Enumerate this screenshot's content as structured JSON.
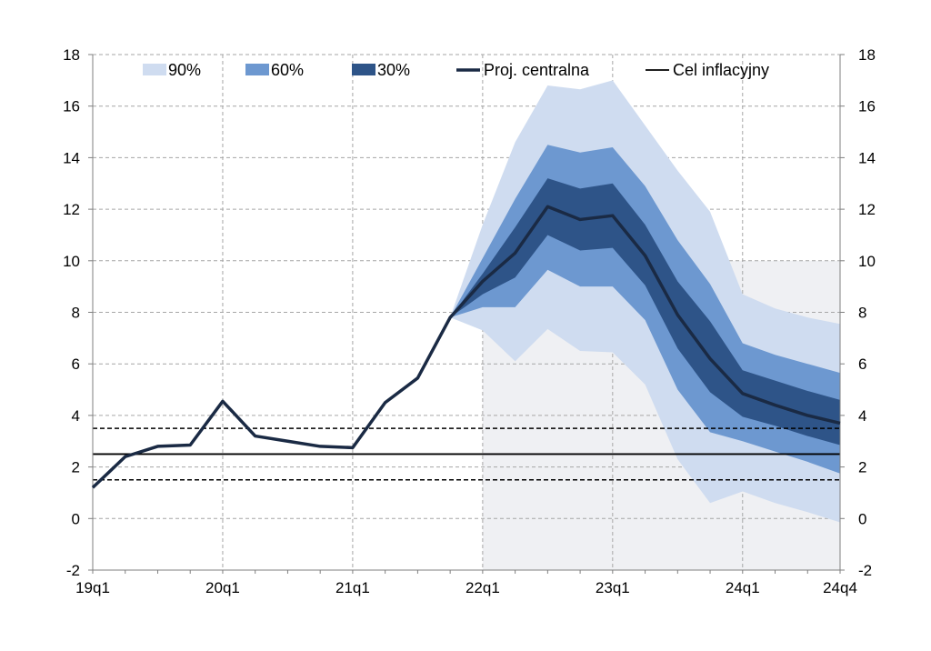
{
  "chart_data": {
    "type": "area",
    "title": "",
    "xlabel": "",
    "ylabel": "",
    "ylim": [
      -2,
      18
    ],
    "y_ticks": [
      -2,
      0,
      2,
      4,
      6,
      8,
      10,
      12,
      14,
      16,
      18
    ],
    "x_tick_labels": [
      {
        "label": "19q1",
        "index": 0
      },
      {
        "label": "20q1",
        "index": 4
      },
      {
        "label": "21q1",
        "index": 8
      },
      {
        "label": "22q1",
        "index": 12
      },
      {
        "label": "23q1",
        "index": 16
      },
      {
        "label": "24q1",
        "index": 20
      },
      {
        "label": "24q4",
        "index": 23
      }
    ],
    "projection_start_index": 12,
    "shaded_box": {
      "x_from_index": 12,
      "x_to_index": 23,
      "y_from": -2,
      "y_to": 10
    },
    "series": [
      {
        "name": "Proj. centralna",
        "start_index": 0,
        "values": [
          1.2,
          2.4,
          2.8,
          2.85,
          4.55,
          3.2,
          3.0,
          2.8,
          2.75,
          4.5,
          5.45,
          7.8,
          9.2,
          10.3,
          12.1,
          11.6,
          11.75,
          10.2,
          7.9,
          6.2,
          4.85,
          4.4,
          4.0,
          3.7
        ]
      }
    ],
    "fan_bands": {
      "start_index": 11,
      "band_90": {
        "name": "90%",
        "upper": [
          7.8,
          11.4,
          14.6,
          16.8,
          16.65,
          17.0,
          15.25,
          13.5,
          11.9,
          8.7,
          8.15,
          7.8,
          7.55
        ],
        "lower": [
          7.8,
          7.3,
          6.1,
          7.35,
          6.5,
          6.45,
          5.2,
          2.3,
          0.6,
          1.05,
          0.6,
          0.25,
          -0.15
        ]
      },
      "band_60": {
        "name": "60%",
        "upper": [
          7.8,
          10.1,
          12.4,
          14.5,
          14.2,
          14.4,
          12.9,
          10.8,
          9.1,
          6.8,
          6.35,
          6.0,
          5.65
        ],
        "lower": [
          7.8,
          8.2,
          8.2,
          9.65,
          9.0,
          9.0,
          7.7,
          5.0,
          3.35,
          3.0,
          2.6,
          2.2,
          1.75
        ]
      },
      "band_30": {
        "name": "30%",
        "upper": [
          7.8,
          9.5,
          11.3,
          13.2,
          12.8,
          13.0,
          11.4,
          9.2,
          7.65,
          5.75,
          5.35,
          4.95,
          4.6
        ],
        "lower": [
          7.8,
          8.7,
          9.35,
          11.0,
          10.4,
          10.5,
          9.05,
          6.6,
          4.9,
          3.95,
          3.6,
          3.2,
          2.85
        ]
      }
    },
    "reference_lines": [
      {
        "name": "Cel inflacyjny",
        "value": 2.5,
        "style": "solid"
      },
      {
        "name": "upper-tolerance",
        "value": 3.5,
        "style": "dashed"
      },
      {
        "name": "lower-tolerance",
        "value": 1.5,
        "style": "dashed"
      }
    ],
    "legend": {
      "position": "top",
      "entries": [
        {
          "label": "90%",
          "kind": "box",
          "color": "#cfdcf0"
        },
        {
          "label": "60%",
          "kind": "box",
          "color": "#6d98d0"
        },
        {
          "label": "30%",
          "kind": "box",
          "color": "#2e5488"
        },
        {
          "label": "Proj. centralna",
          "kind": "line",
          "color": "#1a2a44"
        },
        {
          "label": "Cel inflacyjny",
          "kind": "line",
          "color": "#000000"
        }
      ]
    },
    "colors": {
      "band_90": "#cfdcf0",
      "band_60": "#6d98d0",
      "band_30": "#2e5488",
      "central": "#1a2a44",
      "target": "#000000",
      "shade": "#eff0f3",
      "grid": "#a6a6a6"
    }
  }
}
